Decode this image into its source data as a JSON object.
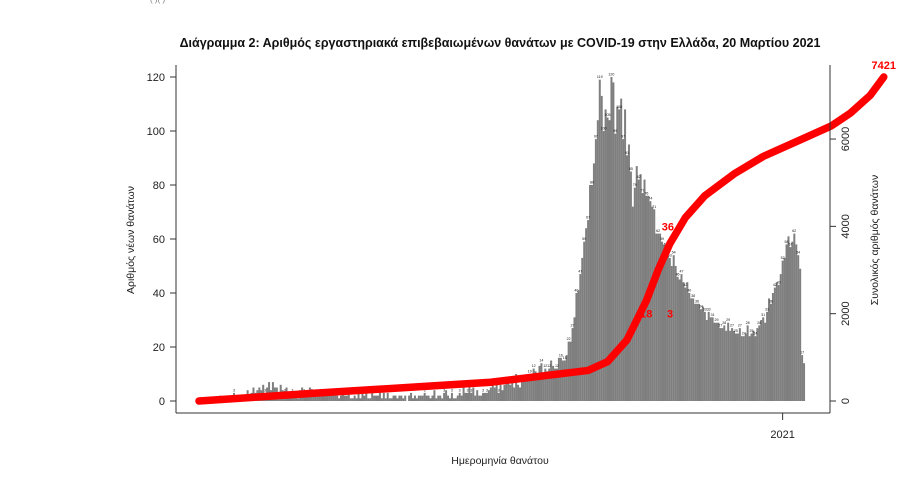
{
  "top_fragment": "(      )(      )",
  "chart_data": {
    "type": "bar",
    "title": "Διάγραμμα 2: Αριθμός εργαστηριακά επιβεβαιωμένων θανάτων με COVID-19 στην Ελλάδα, 20 Μαρτίου 2021",
    "xlabel": "Ημερομηνία θανάτου",
    "ylabel": "Αριθμός νέων θανάτων",
    "y2label": "Συνολικός αριθμός θανάτων",
    "x_tick_labels": [
      "2021"
    ],
    "x_tick_index": 300,
    "ylim": [
      0,
      125
    ],
    "yticks": [
      0,
      20,
      40,
      60,
      80,
      100,
      120
    ],
    "y2lim": [
      0,
      7600
    ],
    "y2ticks": [
      0,
      2000,
      4000,
      6000
    ],
    "grid": false,
    "legend": "none",
    "colors": {
      "bars": "#7f7f7f",
      "cumulative": "#ff0000"
    },
    "series": [
      {
        "type": "bar",
        "axis": "left",
        "values": [
          0,
          1,
          1,
          0,
          1,
          1,
          1,
          1,
          0,
          0,
          1,
          2,
          1,
          0,
          1,
          1,
          0,
          2,
          3,
          2,
          1,
          1,
          2,
          1,
          1,
          4,
          2,
          3,
          5,
          3,
          4,
          5,
          4,
          6,
          3,
          5,
          7,
          4,
          7,
          5,
          5,
          3,
          6,
          4,
          3,
          5,
          1,
          2,
          3,
          3,
          2,
          1,
          4,
          5,
          3,
          2,
          4,
          5,
          3,
          2,
          4,
          3,
          2,
          3,
          2,
          3,
          2,
          2,
          2,
          3,
          2,
          2,
          1,
          2,
          3,
          2,
          2,
          3,
          1,
          1,
          2,
          1,
          3,
          1,
          3,
          2,
          3,
          1,
          1,
          3,
          2,
          2,
          2,
          4,
          1,
          3,
          1,
          3,
          1,
          1,
          2,
          2,
          1,
          2,
          2,
          1,
          2,
          0,
          2,
          3,
          1,
          2,
          1,
          2,
          2,
          2,
          3,
          2,
          2,
          1,
          2,
          4,
          1,
          2,
          2,
          1,
          3,
          4,
          2,
          1,
          3,
          1,
          1,
          2,
          3,
          2,
          5,
          3,
          3,
          6,
          3,
          5,
          2,
          4,
          2,
          2,
          3,
          3,
          3,
          4,
          5,
          6,
          5,
          7,
          3,
          6,
          4,
          6,
          7,
          7,
          6,
          7,
          5,
          10,
          6,
          5,
          8,
          9,
          8,
          8,
          10,
          9,
          12,
          11,
          8,
          13,
          14,
          10,
          12,
          11,
          12,
          15,
          13,
          12,
          12,
          16,
          16,
          15,
          15,
          17,
          22,
          22,
          27,
          31,
          40,
          41,
          47,
          53,
          59,
          64,
          67,
          80,
          80,
          88,
          97,
          104,
          119,
          113,
          100,
          108,
          105,
          104,
          120,
          118,
          99,
          109,
          108,
          112,
          97,
          108,
          91,
          95,
          85,
          72,
          79,
          87,
          82,
          84,
          77,
          82,
          76,
          76,
          74,
          72,
          71,
          62,
          62,
          62,
          59,
          58,
          57,
          54,
          53,
          50,
          54,
          50,
          46,
          45,
          47,
          44,
          42,
          44,
          40,
          38,
          38,
          36,
          36,
          36,
          34,
          35,
          33,
          30,
          33,
          31,
          31,
          29,
          29,
          29,
          27,
          27,
          28,
          26,
          29,
          26,
          27,
          26,
          25,
          25,
          27,
          24,
          24,
          25,
          28,
          24,
          25,
          26,
          24,
          27,
          28,
          30,
          31,
          29,
          33,
          38,
          36,
          40,
          42,
          44,
          43,
          47,
          52,
          53,
          58,
          61,
          57,
          59,
          62,
          58,
          54,
          49,
          17,
          14
        ]
      },
      {
        "type": "line",
        "axis": "right",
        "points": [
          [
            0,
            0
          ],
          [
            60,
            180
          ],
          [
            150,
            430
          ],
          [
            200,
            700
          ],
          [
            210,
            900
          ],
          [
            220,
            1400
          ],
          [
            230,
            2300
          ],
          [
            236,
            3000
          ],
          [
            242,
            3600
          ],
          [
            250,
            4200
          ],
          [
            260,
            4700
          ],
          [
            275,
            5200
          ],
          [
            290,
            5600
          ],
          [
            310,
            6000
          ],
          [
            325,
            6300
          ],
          [
            335,
            6600
          ],
          [
            345,
            7000
          ],
          [
            352,
            7421
          ]
        ]
      }
    ],
    "annotations": [
      {
        "text": "7421",
        "at_index": 352,
        "y2": 7421
      },
      {
        "text": "36",
        "at_index": 241,
        "y2": 4000
      },
      {
        "text": "18",
        "at_index": 233,
        "y2": 2000
      },
      {
        "text": "3",
        "at_index": 238,
        "y2": 2000
      }
    ],
    "bar_labels": [
      "3",
      "10",
      "12",
      "15",
      "16",
      "22",
      "27",
      "31",
      "40",
      "41",
      "47",
      "53",
      "59",
      "64",
      "67",
      "80",
      "88",
      "97",
      "104",
      "120",
      "119",
      "113",
      "100",
      "108",
      "105",
      "104",
      "120",
      "118",
      "99",
      "109",
      "108",
      "112",
      "97",
      "108",
      "91",
      "95",
      "85",
      "72",
      "79",
      "87",
      "82",
      "84",
      "77",
      "76",
      "74",
      "72",
      "71",
      "62",
      "59",
      "58",
      "57",
      "54",
      "53",
      "50",
      "46",
      "45",
      "47",
      "44",
      "42",
      "40",
      "38",
      "36",
      "34",
      "35",
      "33",
      "30",
      "31",
      "29",
      "27",
      "28",
      "26",
      "25",
      "24",
      "28",
      "24",
      "25",
      "26",
      "27",
      "30",
      "31",
      "33",
      "38",
      "36",
      "40",
      "42",
      "44",
      "43",
      "47",
      "52",
      "53",
      "58",
      "61",
      "57",
      "59",
      "62",
      "54",
      "49",
      "17",
      "14"
    ]
  }
}
